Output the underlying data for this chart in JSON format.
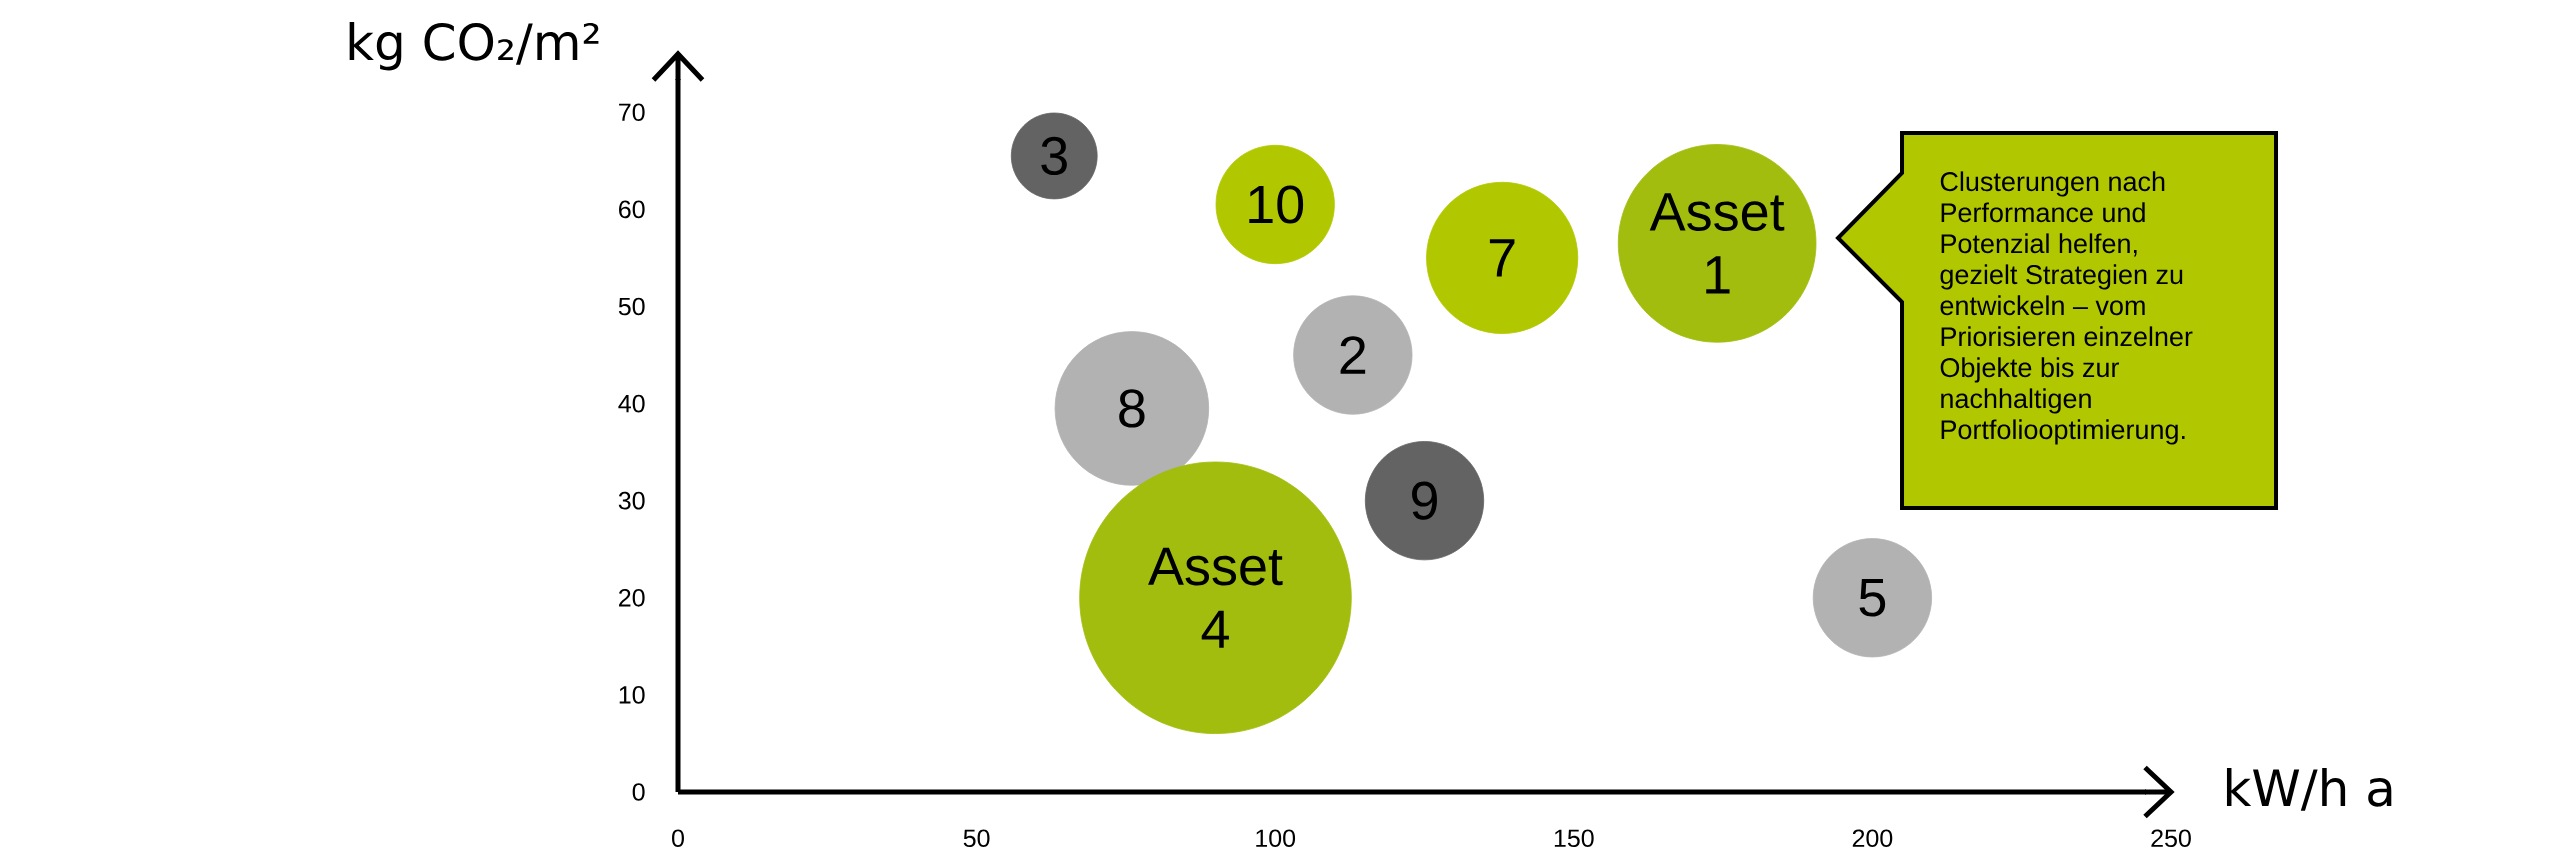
{
  "chart_data": {
    "type": "bubble",
    "xlabel": "kW/h a",
    "ylabel": "kg CO₂/m²",
    "xlim": [
      0,
      250
    ],
    "ylim": [
      0,
      76
    ],
    "xticks": [
      0,
      50,
      100,
      150,
      200,
      250
    ],
    "yticks": [
      0,
      10,
      20,
      30,
      40,
      50,
      60,
      70
    ],
    "x": [
      174,
      113,
      63,
      200,
      138,
      76,
      125,
      100,
      90
    ],
    "values": [
      56.5,
      45,
      65.5,
      20,
      55,
      39.5,
      30,
      60.5,
      20
    ],
    "sizes": [
      0.53,
      0.19,
      0.1,
      0.19,
      0.31,
      0.32,
      0.19,
      0.19,
      1
    ],
    "colors": [
      "#a2bd0d",
      "#b2b2b2",
      "#636363",
      "#b2b2b2",
      "#b1c800",
      "#b2b2b2",
      "#636363",
      "#b1c800",
      "#a2bd0d"
    ],
    "annotations": [
      "Clusterungen nach Performance und Potenzial helfen, gezielt Strategien zu entwickeln – vom Priorisieren einzelner Objekte bis zur nachhaltigen Portfoliooptimierung.",
      {
        "text": "Asset 1",
        "x": 174,
        "y": 56.5
      },
      {
        "text": "2",
        "x": 113,
        "y": 45
      },
      {
        "text": "3",
        "x": 63,
        "y": 65.5
      },
      {
        "text": "5",
        "x": 200,
        "y": 20
      },
      {
        "text": "7",
        "x": 138,
        "y": 55
      },
      {
        "text": "8",
        "x": 76,
        "y": 39.5
      },
      {
        "text": "9",
        "x": 125,
        "y": 30
      },
      {
        "text": "10",
        "x": 100,
        "y": 60.5
      },
      {
        "text": "Asset 4",
        "x": 90,
        "y": 20
      }
    ]
  }
}
